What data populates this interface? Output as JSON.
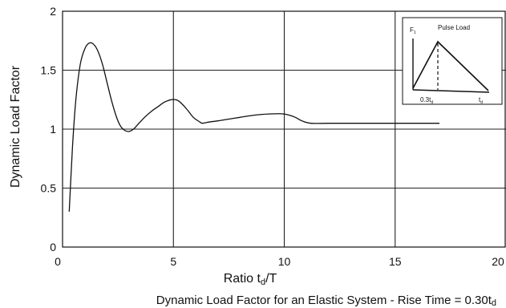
{
  "chart_data": {
    "type": "line",
    "caption_main": "Dynamic Load Factor for an Elastic System - Rise Time = 0.30t",
    "caption_sub": "d",
    "xlabel_main": "Ratio  t",
    "xlabel_sub": "d",
    "xlabel_tail": "/T",
    "ylabel": "Dynamic  Load  Factor",
    "xlim": [
      0,
      20
    ],
    "ylim": [
      0,
      2
    ],
    "xticks": [
      "0",
      "5",
      "10",
      "15",
      "20"
    ],
    "yticks": [
      "0",
      "0.5",
      "1",
      "1.5",
      "2"
    ],
    "grid": true,
    "series": [
      {
        "x": [
          0.3,
          0.45,
          0.6,
          0.8,
          1.0,
          1.2,
          1.4,
          1.6,
          1.8,
          2.0,
          2.2,
          2.4,
          2.6,
          2.8,
          3.0,
          3.2,
          3.4,
          3.7,
          4.0,
          4.3,
          4.6,
          4.9,
          5.1,
          5.3,
          5.6,
          5.9,
          6.2,
          6.3,
          6.6,
          7.0,
          7.5,
          8.0,
          8.5,
          9.0,
          9.5,
          9.9,
          10.2,
          10.5,
          10.8,
          11.2,
          12,
          13,
          14,
          15,
          16,
          17
        ],
        "y": [
          0.3,
          0.85,
          1.25,
          1.55,
          1.68,
          1.73,
          1.72,
          1.66,
          1.55,
          1.4,
          1.25,
          1.12,
          1.03,
          0.99,
          0.98,
          1.0,
          1.04,
          1.1,
          1.15,
          1.19,
          1.23,
          1.25,
          1.25,
          1.23,
          1.17,
          1.1,
          1.06,
          1.05,
          1.06,
          1.07,
          1.085,
          1.1,
          1.115,
          1.125,
          1.13,
          1.13,
          1.12,
          1.1,
          1.07,
          1.05,
          1.05,
          1.05,
          1.05,
          1.05,
          1.05,
          1.05
        ]
      }
    ],
    "inset": {
      "title": "Pulse Load",
      "y_label": "F",
      "y_label_sub": "1",
      "x_label_rise": "0.3t",
      "x_label_rise_sub": "d",
      "x_label_end": "t",
      "x_label_end_sub": "d"
    }
  }
}
